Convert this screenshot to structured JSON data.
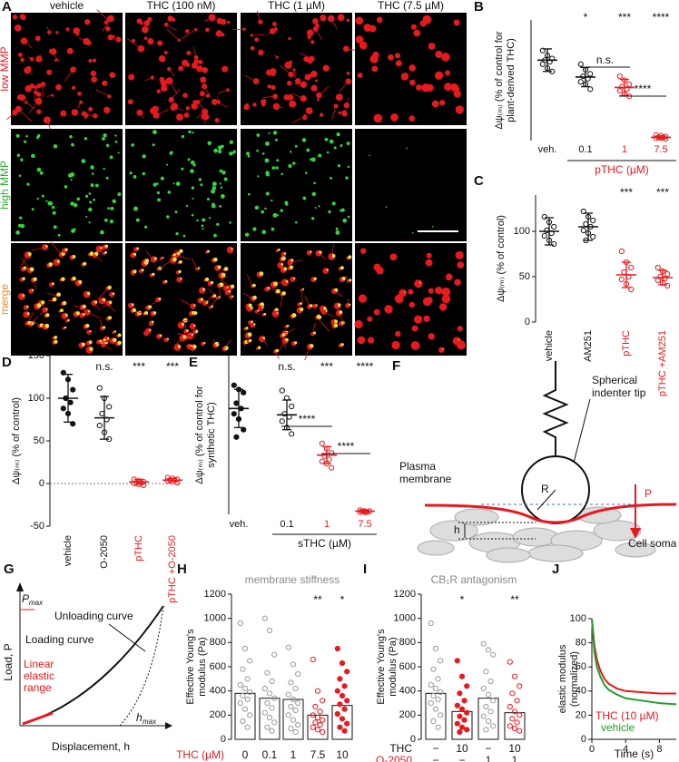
{
  "images": {
    "label": "A",
    "columns": [
      "vehicle",
      "THC (100 nM)",
      "THC (1 µM)",
      "THC (7.5 µM)"
    ],
    "rows": [
      "low MMP",
      "high MMP",
      "merge"
    ],
    "row_colors": [
      "#e8191e",
      "#22b02a",
      "#f08a1c"
    ]
  },
  "chart_data": [
    {
      "type": "dot",
      "label": "B",
      "ylabel": [
        "Δψ₍ₘ₎ (% of control for",
        "plant-derived THC)"
      ],
      "categories": [
        "veh.",
        "0.1",
        "1",
        "7.5"
      ],
      "colors": [
        "#111111",
        "#111111",
        "#e8191e",
        "#e8191e"
      ],
      "values": [
        100,
        79,
        66,
        4
      ],
      "errors": [
        14,
        12,
        10,
        2
      ],
      "points": [
        [
          112,
          106,
          102,
          100,
          98,
          95,
          90,
          86
        ],
        [
          95,
          88,
          83,
          80,
          77,
          73,
          70,
          64
        ],
        [
          80,
          75,
          70,
          67,
          64,
          62,
          58,
          55
        ],
        [
          7,
          6,
          5,
          4,
          4,
          3,
          3,
          2
        ]
      ],
      "significance": [
        null,
        "*",
        "***",
        "****"
      ],
      "brackets": [
        "n.s.",
        "****"
      ],
      "group_label": "pTHC (µM)",
      "group_color": "#e8191e",
      "ylim": [
        0,
        150
      ]
    },
    {
      "type": "dot",
      "label": "C",
      "ylabel": [
        "Δψ₍ₘ₎ (% of control)"
      ],
      "categories": [
        "vehicle",
        "AM251",
        "pTHC",
        "pTHC +AM251"
      ],
      "colors": [
        "#111111",
        "#111111",
        "#e8191e",
        "#e8191e"
      ],
      "values": [
        100,
        105,
        52,
        49
      ],
      "errors": [
        15,
        15,
        14,
        8
      ],
      "points": [
        [
          116,
          110,
          105,
          101,
          98,
          95,
          90,
          86
        ],
        [
          122,
          116,
          112,
          108,
          105,
          101,
          98,
          94,
          90
        ],
        [
          78,
          66,
          60,
          55,
          50,
          47,
          42,
          36
        ],
        [
          60,
          56,
          53,
          50,
          48,
          46,
          43,
          40
        ]
      ],
      "significance": [
        null,
        null,
        "***",
        "***"
      ],
      "ylim": [
        0,
        140
      ],
      "yticks": [
        0,
        50,
        100
      ]
    },
    {
      "type": "dot",
      "label": "D",
      "ylabel": [
        "Δψ₍ₘ₎ (% of control)"
      ],
      "categories": [
        "vehicle",
        "O-2050",
        "pTHC",
        "pTHC +O-2050"
      ],
      "colors": [
        "#111111",
        "#111111",
        "#e8191e",
        "#e8191e"
      ],
      "values": [
        100,
        77,
        2,
        4
      ],
      "errors": [
        28,
        25,
        3,
        2
      ],
      "points": [
        [
          130,
          122,
          110,
          100,
          95,
          88,
          82,
          70
        ],
        [
          112,
          100,
          90,
          82,
          75,
          68,
          60,
          52
        ],
        [
          5,
          3,
          2,
          1,
          1,
          0,
          -1,
          -2
        ],
        [
          7,
          6,
          5,
          4,
          4,
          3,
          2,
          1
        ]
      ],
      "significance": [
        null,
        "n.s.",
        "***",
        "***"
      ],
      "ylim": [
        -50,
        150
      ],
      "yticks": [
        -50,
        0,
        50,
        100,
        150
      ],
      "reference_line": 0
    },
    {
      "type": "dot",
      "label": "E",
      "ylabel": [
        "Δψ₍ₘ₎ (% of control for",
        "synthetic THC)"
      ],
      "categories": [
        "veh.",
        "0.1",
        "1",
        "7.5"
      ],
      "colors": [
        "#111111",
        "#111111",
        "#e8191e",
        "#e8191e"
      ],
      "values": [
        100,
        94,
        56,
        3
      ],
      "errors": [
        18,
        14,
        8,
        1
      ],
      "points": [
        [
          122,
          118,
          115,
          105,
          100,
          95,
          90,
          80,
          73
        ],
        [
          117,
          110,
          102,
          95,
          92,
          88,
          82,
          76
        ],
        [
          67,
          62,
          58,
          55,
          52,
          50,
          48,
          44
        ],
        [
          4,
          3,
          3,
          3,
          2,
          2,
          2
        ]
      ],
      "significance": [
        null,
        "n.s.",
        "***",
        "****"
      ],
      "brackets": [
        "****",
        "****"
      ],
      "group_label": "sTHC (µM)",
      "group_color": "#111111",
      "ylim": [
        0,
        150
      ]
    },
    {
      "type": "bar",
      "label": "H",
      "title": "membrane stiffness",
      "ylabel": [
        "Effective Young's",
        "modulus (Pa)"
      ],
      "xlabel": "THC (µM)",
      "categories": [
        "0",
        "0.1",
        "1",
        "7.5",
        "10"
      ],
      "colors": [
        "#999999",
        "#999999",
        "#999999",
        "#e8191e",
        "#e8191e"
      ],
      "values": [
        380,
        340,
        330,
        200,
        280
      ],
      "points": [
        [
          960,
          750,
          650,
          580,
          500,
          450,
          420,
          390,
          360,
          330,
          300,
          250,
          200,
          150,
          100
        ],
        [
          1000,
          900,
          700,
          550,
          480,
          420,
          380,
          340,
          300,
          260,
          220,
          180,
          140,
          100,
          70
        ],
        [
          760,
          620,
          540,
          470,
          420,
          370,
          330,
          300,
          270,
          240,
          200,
          160,
          120,
          90,
          60
        ],
        [
          660,
          400,
          320,
          270,
          230,
          200,
          180,
          160,
          140,
          120,
          100,
          80,
          60
        ],
        [
          750,
          630,
          560,
          500,
          440,
          400,
          360,
          320,
          290,
          250,
          210,
          170,
          130,
          100,
          70
        ]
      ],
      "significance": [
        null,
        null,
        null,
        "**",
        "*"
      ],
      "ylim": [
        0,
        1200
      ],
      "yticks": [
        0,
        200,
        400,
        600,
        800,
        1000,
        1200
      ]
    },
    {
      "type": "bar",
      "label": "I",
      "title": "CB₁R antagonism",
      "ylabel": [
        "Effective Young's",
        "modulus (Pa)"
      ],
      "conditions": [
        {
          "name": "THC",
          "color": "#111111",
          "values": [
            "−",
            "10",
            "−",
            "10"
          ]
        },
        {
          "name": "O-2050",
          "color": "#e8191e",
          "values": [
            "−",
            "−",
            "1",
            "1"
          ]
        }
      ],
      "colors": [
        "#999999",
        "#e8191e",
        "#999999",
        "#e8191e"
      ],
      "values": [
        380,
        230,
        340,
        220
      ],
      "points": [
        [
          960,
          750,
          650,
          580,
          500,
          450,
          420,
          390,
          360,
          330,
          300,
          250,
          200,
          150,
          100
        ],
        [
          650,
          520,
          440,
          380,
          320,
          280,
          250,
          220,
          190,
          160,
          130,
          100,
          80,
          60
        ],
        [
          790,
          740,
          700,
          560,
          480,
          420,
          370,
          320,
          270,
          230,
          190,
          150,
          110,
          80
        ],
        [
          640,
          520,
          440,
          380,
          320,
          270,
          230,
          200,
          170,
          140,
          110,
          90,
          70
        ]
      ],
      "significance": [
        null,
        "*",
        null,
        "**"
      ],
      "ylim": [
        0,
        1200
      ],
      "yticks": [
        0,
        200,
        400,
        600,
        800,
        1000,
        1200
      ]
    },
    {
      "type": "line",
      "label": "J",
      "ylabel": [
        "elastic modulus",
        "(normalized)"
      ],
      "xlabel": "Time (s)",
      "x": [
        0,
        0.3,
        0.6,
        1,
        1.5,
        2,
        3,
        4,
        6,
        8,
        10
      ],
      "series": [
        {
          "name": "THC (10 µM)",
          "color": "#e8191e",
          "values": [
            100,
            78,
            66,
            57,
            50,
            46,
            42,
            40,
            39,
            38,
            38
          ]
        },
        {
          "name": "vehicle",
          "color": "#22a02a",
          "values": [
            100,
            72,
            60,
            52,
            45,
            41,
            37,
            34,
            32,
            30,
            29
          ]
        }
      ],
      "xlim": [
        0,
        10
      ],
      "xticks": [
        0,
        4,
        8
      ],
      "ylim": [
        0,
        100
      ],
      "yticks": [
        0,
        20,
        40,
        60,
        80,
        100
      ]
    }
  ],
  "diagrams": {
    "F": {
      "label": "F",
      "tip": [
        "Spherical",
        "indenter tip"
      ],
      "membrane": [
        "Plasma",
        "membrane"
      ],
      "radius": "R",
      "force": "P",
      "depth": "h",
      "soma": "Cell soma"
    },
    "G": {
      "label": "G",
      "pmax": {
        "symbol": "P",
        "subscript": "max"
      },
      "unloading": "Unloading curve",
      "loading": "Loading curve",
      "linear": [
        "Linear",
        "elastic",
        "range"
      ],
      "ylabel": "Load, P",
      "xlabel": "Displacement, h",
      "hmax": {
        "symbol": "h",
        "subscript": "max"
      }
    }
  }
}
